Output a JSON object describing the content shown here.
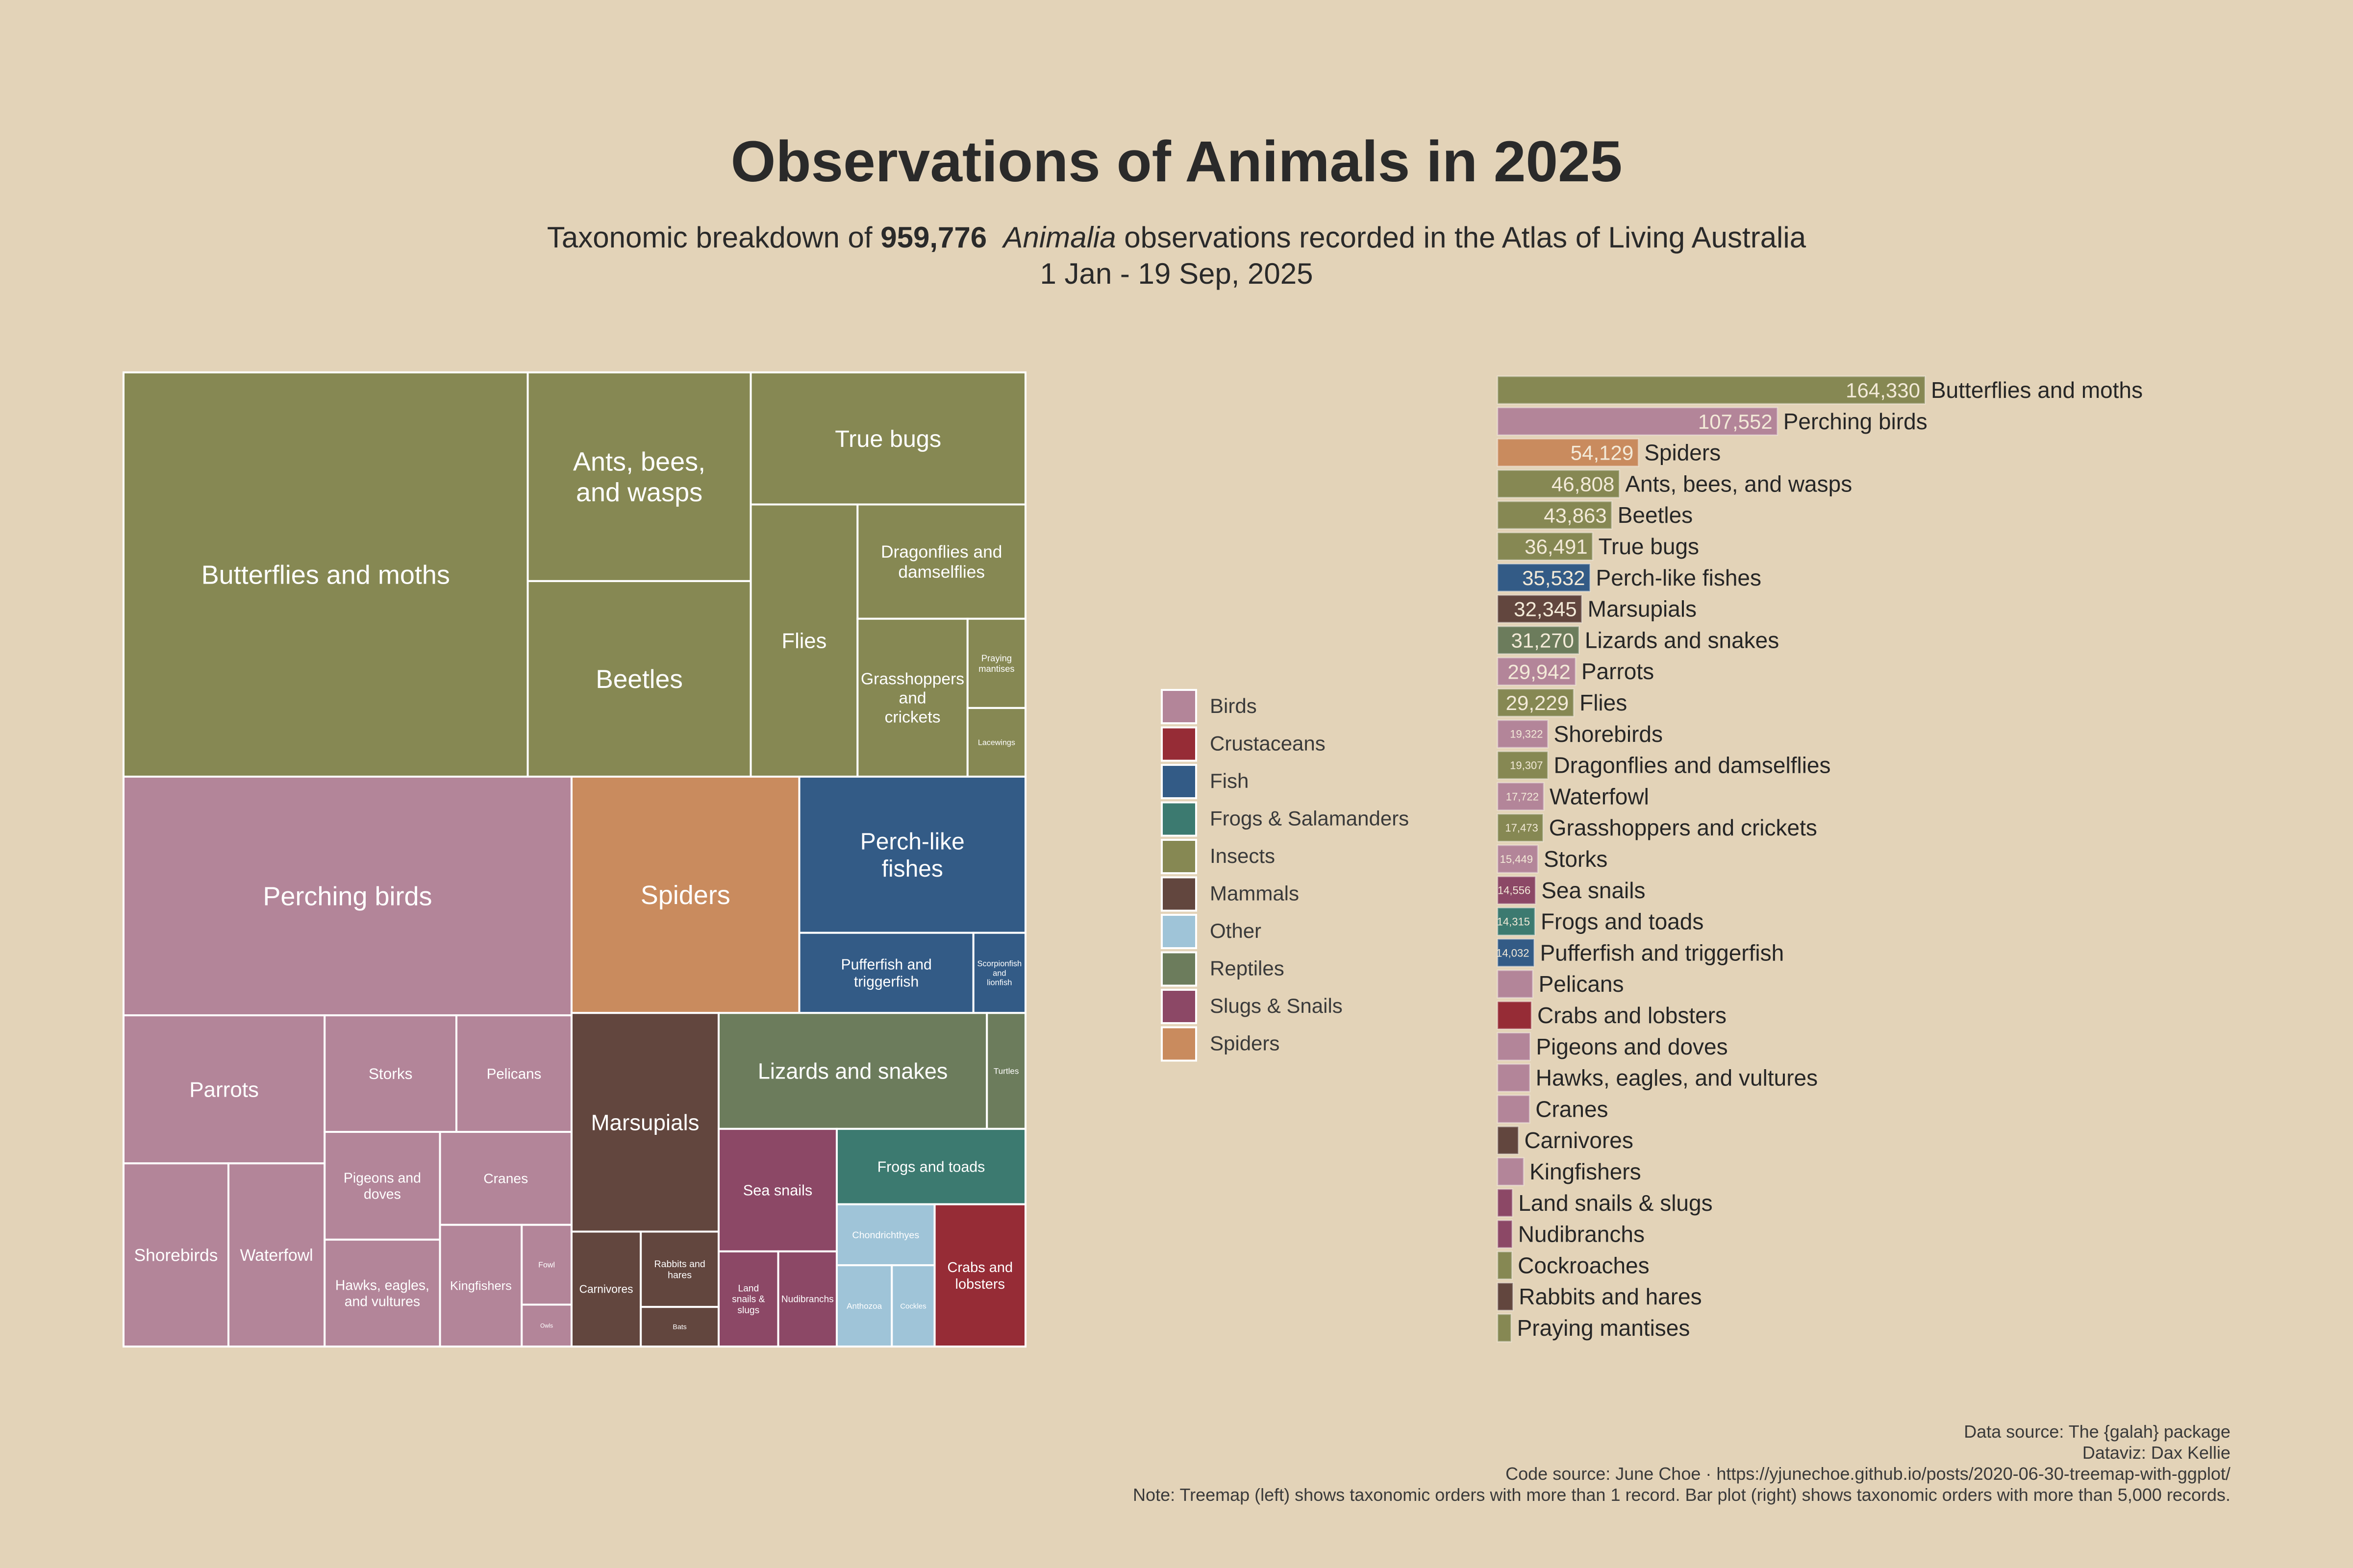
{
  "title": "Observations of Animals in 2025",
  "subtitle": {
    "pre": "Taxonomic breakdown of ",
    "total": "959,776",
    "taxon": "Animalia",
    "post": " observations recorded in the Atlas of Living Australia",
    "date_range": "1 Jan - 19 Sep, 2025"
  },
  "caption": {
    "data_source": "Data source: The {galah} package",
    "dataviz": "Dataviz: Dax Kellie",
    "code_source": "Code source: June Choe · https://yjunechoe.github.io/posts/2020-06-30-treemap-with-ggplot/",
    "note": "Note: Treemap (left) shows taxonomic orders with more than 1 record. Bar plot (right) shows taxonomic orders with more than 5,000 records."
  },
  "chart_data": [
    {
      "type": "treemap",
      "groups": [
        {
          "name": "Insects",
          "items": [
            {
              "label": "Butterflies and moths",
              "value": 164330
            },
            {
              "label": "Ants, bees, and wasps",
              "value": 46808
            },
            {
              "label": "Beetles",
              "value": 43863
            },
            {
              "label": "Flies",
              "value": 29229
            },
            {
              "label": "Dragonflies and damselflies",
              "value": 19307
            },
            {
              "label": "True bugs",
              "value": 36491
            },
            {
              "label": "Grasshoppers and crickets",
              "value": 17473
            },
            {
              "label": "Praying mantises",
              "value": 5200
            },
            {
              "label": "Lacewings",
              "value": 4000
            }
          ]
        },
        {
          "name": "Birds",
          "items": [
            {
              "label": "Perching birds",
              "value": 107552
            },
            {
              "label": "Parrots",
              "value": 29942
            },
            {
              "label": "Shorebirds",
              "value": 19322
            },
            {
              "label": "Waterfowl",
              "value": 17722
            },
            {
              "label": "Storks",
              "value": 15449
            },
            {
              "label": "Pelicans",
              "value": 13500
            },
            {
              "label": "Pigeons and doves",
              "value": 12500
            },
            {
              "label": "Cranes",
              "value": 12300
            },
            {
              "label": "Hawks, eagles, and vultures",
              "value": 12400
            },
            {
              "label": "Kingfishers",
              "value": 10000
            },
            {
              "label": "Owls",
              "value": 2100
            },
            {
              "label": "Fowl",
              "value": 4000
            }
          ]
        },
        {
          "name": "Fish",
          "items": [
            {
              "label": "Perch-like fishes",
              "value": 35532
            },
            {
              "label": "Pufferfish and triggerfish",
              "value": 14032
            },
            {
              "label": "Scorpionfish and lionfish",
              "value": 4200
            }
          ]
        },
        {
          "name": "Mammals",
          "items": [
            {
              "label": "Marsupials",
              "value": 32345
            },
            {
              "label": "Carnivores",
              "value": 8000
            },
            {
              "label": "Rabbits and hares",
              "value": 5900
            },
            {
              "label": "Bats",
              "value": 3100
            }
          ]
        },
        {
          "name": "Spiders",
          "items": [
            {
              "label": "Spiders",
              "value": 54129
            }
          ]
        },
        {
          "name": "Reptiles",
          "items": [
            {
              "label": "Lizards and snakes",
              "value": 31270
            },
            {
              "label": "Turtles",
              "value": 4500
            }
          ]
        },
        {
          "name": "Slugs & Snails",
          "items": [
            {
              "label": "Sea snails",
              "value": 14556
            },
            {
              "label": "Nudibranchs",
              "value": 5600
            },
            {
              "label": "Land snails & slugs",
              "value": 5700
            }
          ]
        },
        {
          "name": "Crustaceans",
          "items": [
            {
              "label": "Crabs and lobsters",
              "value": 13000
            }
          ]
        },
        {
          "name": "Frogs & Salamanders",
          "items": [
            {
              "label": "Frogs and toads",
              "value": 14315
            }
          ]
        },
        {
          "name": "Other",
          "items": [
            {
              "label": "Cockles",
              "value": 3500
            },
            {
              "label": "Anthozoa",
              "value": 4500
            },
            {
              "label": "Chondrichthyes",
              "value": 6000
            }
          ]
        }
      ]
    },
    {
      "type": "bar",
      "orientation": "horizontal",
      "categories": [
        "Butterflies and moths",
        "Perching birds",
        "Spiders",
        "Ants, bees, and wasps",
        "Beetles",
        "True bugs",
        "Perch-like fishes",
        "Marsupials",
        "Lizards and snakes",
        "Parrots",
        "Flies",
        "Shorebirds",
        "Dragonflies and damselflies",
        "Waterfowl",
        "Grasshoppers and crickets",
        "Storks",
        "Sea snails",
        "Frogs and toads",
        "Pufferfish and triggerfish",
        "Pelicans",
        "Crabs and lobsters",
        "Pigeons and doves",
        "Hawks, eagles, and vultures",
        "Cranes",
        "Carnivores",
        "Kingfishers",
        "Land snails & slugs",
        "Nudibranchs",
        "Cockroaches",
        "Rabbits and hares",
        "Praying mantises"
      ],
      "values": [
        164330,
        107552,
        54129,
        46808,
        43863,
        36491,
        35532,
        32345,
        31270,
        29942,
        29229,
        19322,
        19307,
        17722,
        17473,
        15449,
        14556,
        14315,
        14032,
        13500,
        13000,
        12500,
        12400,
        12300,
        8000,
        10000,
        5700,
        5600,
        5500,
        5900,
        5200
      ],
      "value_labels": [
        "164,330",
        "107,552",
        "54,129",
        "46,808",
        "43,863",
        "36,491",
        "35,532",
        "32,345",
        "31,270",
        "29,942",
        "29,229",
        "19,322",
        "19,307",
        "17,722",
        "17,473",
        "15,449",
        "14,556",
        "14,315",
        "14,032",
        "",
        "",
        "",
        "",
        "",
        "",
        "",
        "",
        "",
        "",
        "",
        ""
      ],
      "groups": [
        "Insects",
        "Birds",
        "Spiders",
        "Insects",
        "Insects",
        "Insects",
        "Fish",
        "Mammals",
        "Reptiles",
        "Birds",
        "Insects",
        "Birds",
        "Insects",
        "Birds",
        "Insects",
        "Birds",
        "Slugs & Snails",
        "Frogs & Salamanders",
        "Fish",
        "Birds",
        "Crustaceans",
        "Birds",
        "Birds",
        "Birds",
        "Mammals",
        "Birds",
        "Slugs & Snails",
        "Slugs & Snails",
        "Insects",
        "Mammals",
        "Insects"
      ]
    }
  ],
  "legend": [
    {
      "name": "Birds",
      "color": "#b38599"
    },
    {
      "name": "Crustaceans",
      "color": "#962c36"
    },
    {
      "name": "Fish",
      "color": "#335b86"
    },
    {
      "name": "Frogs & Salamanders",
      "color": "#3c7a70"
    },
    {
      "name": "Insects",
      "color": "#868853"
    },
    {
      "name": "Mammals",
      "color": "#62463e"
    },
    {
      "name": "Other",
      "color": "#9fc4d8"
    },
    {
      "name": "Reptiles",
      "color": "#6c7c5c"
    },
    {
      "name": "Slugs & Snails",
      "color": "#8c4866"
    },
    {
      "name": "Spiders",
      "color": "#c98b5e"
    }
  ]
}
